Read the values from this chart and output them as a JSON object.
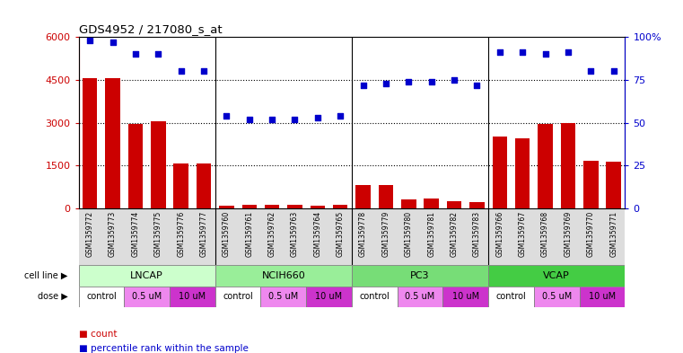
{
  "title": "GDS4952 / 217080_s_at",
  "samples": [
    "GSM1359772",
    "GSM1359773",
    "GSM1359774",
    "GSM1359775",
    "GSM1359776",
    "GSM1359777",
    "GSM1359760",
    "GSM1359761",
    "GSM1359762",
    "GSM1359763",
    "GSM1359764",
    "GSM1359765",
    "GSM1359778",
    "GSM1359779",
    "GSM1359780",
    "GSM1359781",
    "GSM1359782",
    "GSM1359783",
    "GSM1359766",
    "GSM1359767",
    "GSM1359768",
    "GSM1359769",
    "GSM1359770",
    "GSM1359771"
  ],
  "counts": [
    4550,
    4550,
    2950,
    3050,
    1560,
    1560,
    100,
    120,
    130,
    110,
    100,
    130,
    800,
    800,
    300,
    330,
    250,
    230,
    2500,
    2450,
    2950,
    3000,
    1650,
    1620
  ],
  "percentile_ranks": [
    98,
    97,
    90,
    90,
    80,
    80,
    54,
    52,
    52,
    52,
    53,
    54,
    72,
    73,
    74,
    74,
    75,
    72,
    91,
    91,
    90,
    91,
    80,
    80
  ],
  "bar_color": "#cc0000",
  "dot_color": "#0000cc",
  "ylim_left": [
    0,
    6000
  ],
  "ylim_right": [
    0,
    100
  ],
  "yticks_left": [
    0,
    1500,
    3000,
    4500,
    6000
  ],
  "yticks_right": [
    0,
    25,
    50,
    75,
    100
  ],
  "ytick_labels_left": [
    "0",
    "1500",
    "3000",
    "4500",
    "6000"
  ],
  "ytick_labels_right": [
    "0",
    "25",
    "50",
    "75",
    "100%"
  ],
  "cell_lines": [
    {
      "label": "LNCAP",
      "start": 0,
      "end": 6
    },
    {
      "label": "NCIH660",
      "start": 6,
      "end": 12
    },
    {
      "label": "PC3",
      "start": 12,
      "end": 18
    },
    {
      "label": "VCAP",
      "start": 18,
      "end": 24
    }
  ],
  "cell_line_colors": [
    "#ccffcc",
    "#99ee99",
    "#77dd77",
    "#44cc44"
  ],
  "dose_pattern": [
    [
      "control",
      0,
      2
    ],
    [
      "0.5 uM",
      2,
      4
    ],
    [
      "10 uM",
      4,
      6
    ],
    [
      "control",
      6,
      8
    ],
    [
      "0.5 uM",
      8,
      10
    ],
    [
      "10 uM",
      10,
      12
    ],
    [
      "control",
      12,
      14
    ],
    [
      "0.5 uM",
      14,
      16
    ],
    [
      "10 uM",
      16,
      18
    ],
    [
      "control",
      18,
      20
    ],
    [
      "0.5 uM",
      20,
      22
    ],
    [
      "10 uM",
      22,
      24
    ]
  ],
  "dose_colors": {
    "control": "#ffffff",
    "0.5 uM": "#ee88ee",
    "10 uM": "#cc33cc"
  },
  "group_separators": [
    5.5,
    11.5,
    17.5
  ],
  "label_color_left": "#cc0000",
  "label_color_right": "#0000cc",
  "tick_label_bg": "#dddddd"
}
